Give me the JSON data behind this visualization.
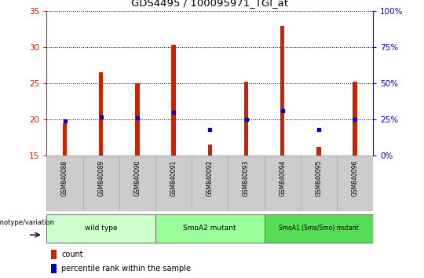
{
  "title": "GDS4495 / 100095971_TGI_at",
  "samples": [
    "GSM840088",
    "GSM840089",
    "GSM840090",
    "GSM840091",
    "GSM840092",
    "GSM840093",
    "GSM840094",
    "GSM840095",
    "GSM840096"
  ],
  "counts": [
    19.5,
    26.5,
    25.0,
    30.3,
    16.5,
    25.2,
    33.0,
    16.2,
    25.2
  ],
  "pct_values": [
    24,
    27,
    26,
    30,
    18,
    25,
    31,
    18,
    25
  ],
  "ylim": [
    15,
    35
  ],
  "yticks": [
    15,
    20,
    25,
    30,
    35
  ],
  "y2lim": [
    0,
    100
  ],
  "y2ticks": [
    0,
    25,
    50,
    75,
    100
  ],
  "groups": [
    {
      "label": "wild type",
      "indices": [
        0,
        1,
        2
      ],
      "color": "#ccffcc"
    },
    {
      "label": "SmoA2 mutant",
      "indices": [
        3,
        4,
        5
      ],
      "color": "#99ff99"
    },
    {
      "label": "SmoA1 (Smo/Smo) mutant",
      "indices": [
        6,
        7,
        8
      ],
      "color": "#55dd55"
    }
  ],
  "bar_color": "#cc2200",
  "dot_color": "#0000cc",
  "left_axis_color": "#cc2200",
  "right_axis_color": "#0000cc",
  "tick_label_bg": "#cccccc",
  "grid_color": "#000000",
  "bar_bottom": 15,
  "bar_width": 0.12
}
